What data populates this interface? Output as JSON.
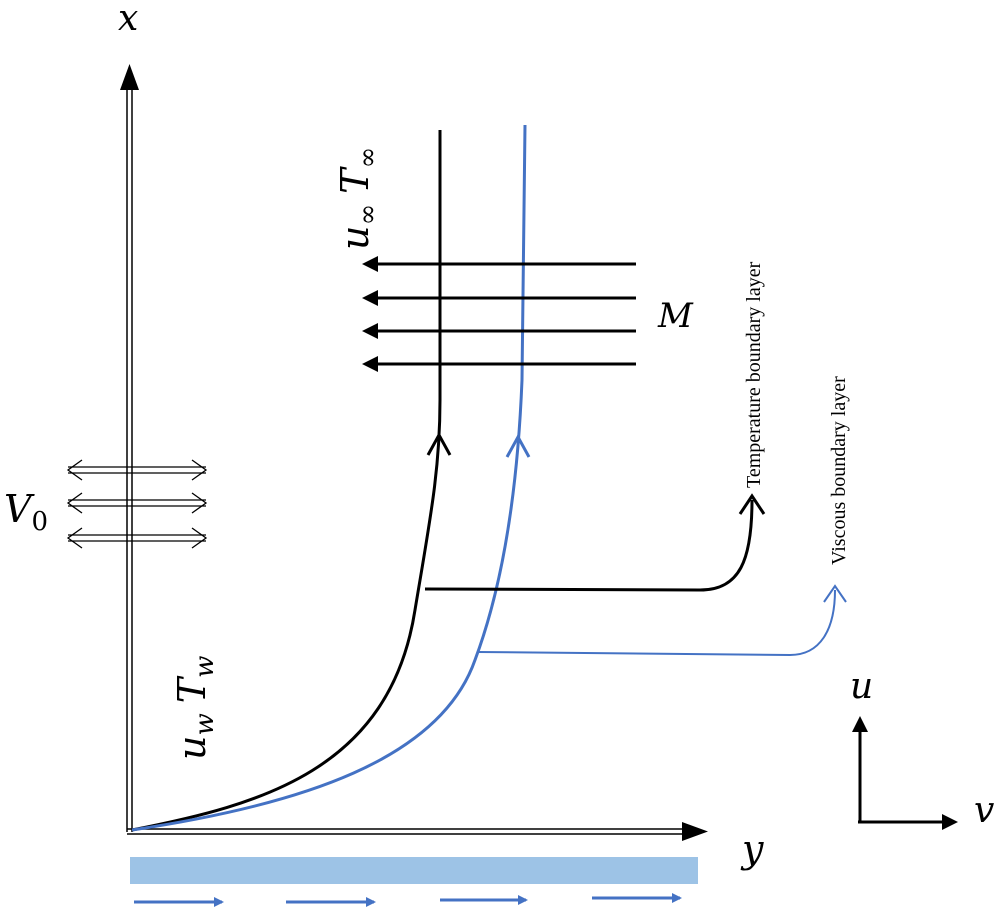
{
  "diagram": {
    "axes": {
      "x_label": "x",
      "y_label": "y",
      "u_label": "u",
      "v_label": "v"
    },
    "labels": {
      "u_infty": "u",
      "u_infty_sub": "∞",
      "T_infty": "T",
      "T_infty_sub": "∞",
      "magnetic": "M",
      "V0": "V",
      "V0_sub": "0",
      "u_w": "u",
      "u_w_sub": "w",
      "T_w": "T",
      "T_w_sub": "w",
      "temperature_bl": "Temperature  boundary layer",
      "viscous_bl": "Viscous boundary layer"
    },
    "colors": {
      "black": "#000000",
      "blue": "#4472C4",
      "plate": "#9DC3E6"
    }
  }
}
